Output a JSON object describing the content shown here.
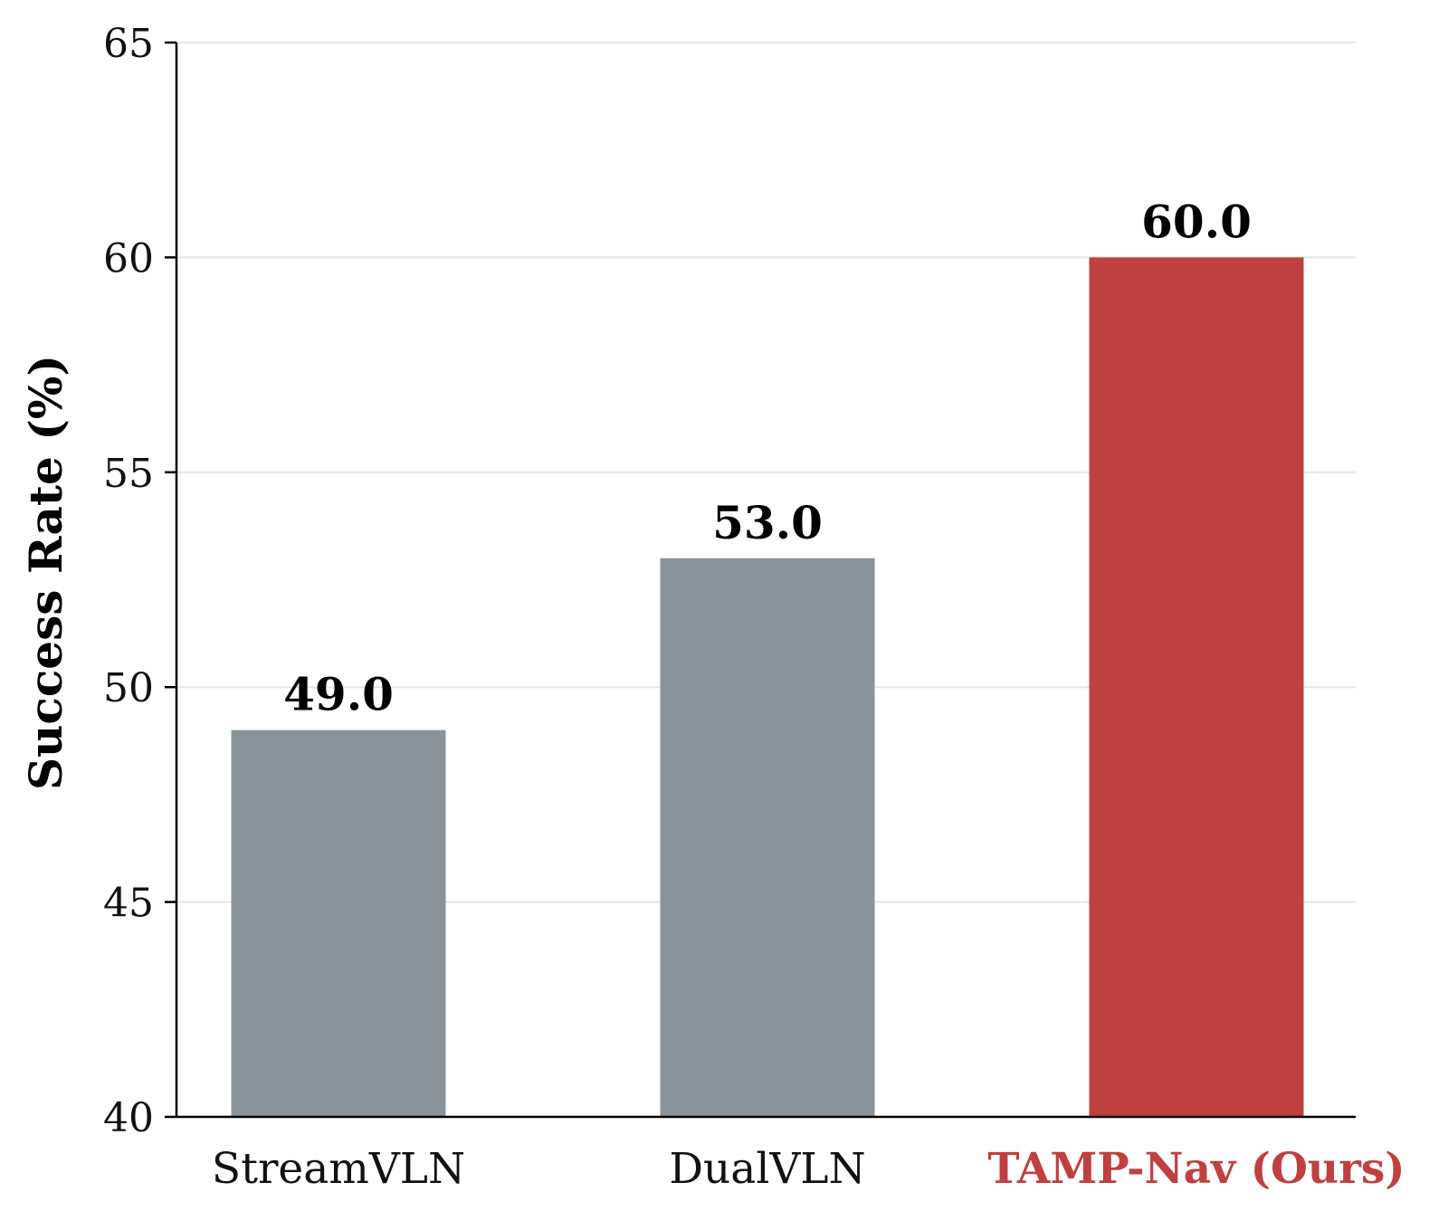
{
  "chart_data": {
    "type": "bar",
    "categories": [
      "StreamVLN",
      "DualVLN",
      "TAMP-Nav (Ours)"
    ],
    "values": [
      49.0,
      53.0,
      60.0
    ],
    "value_labels": [
      "49.0",
      "53.0",
      "60.0"
    ],
    "ylabel": "Success Rate (%)",
    "xlabel": "",
    "title": "",
    "ylim": [
      40,
      65
    ],
    "yticks": [
      40,
      45,
      50,
      55,
      60,
      65
    ],
    "grid": "horizontal",
    "highlight_index": 2,
    "colors": {
      "baseline": "#8b939a",
      "highlight": "#bf4040",
      "grid": "#e6e6e6",
      "axis": "#000000"
    }
  }
}
